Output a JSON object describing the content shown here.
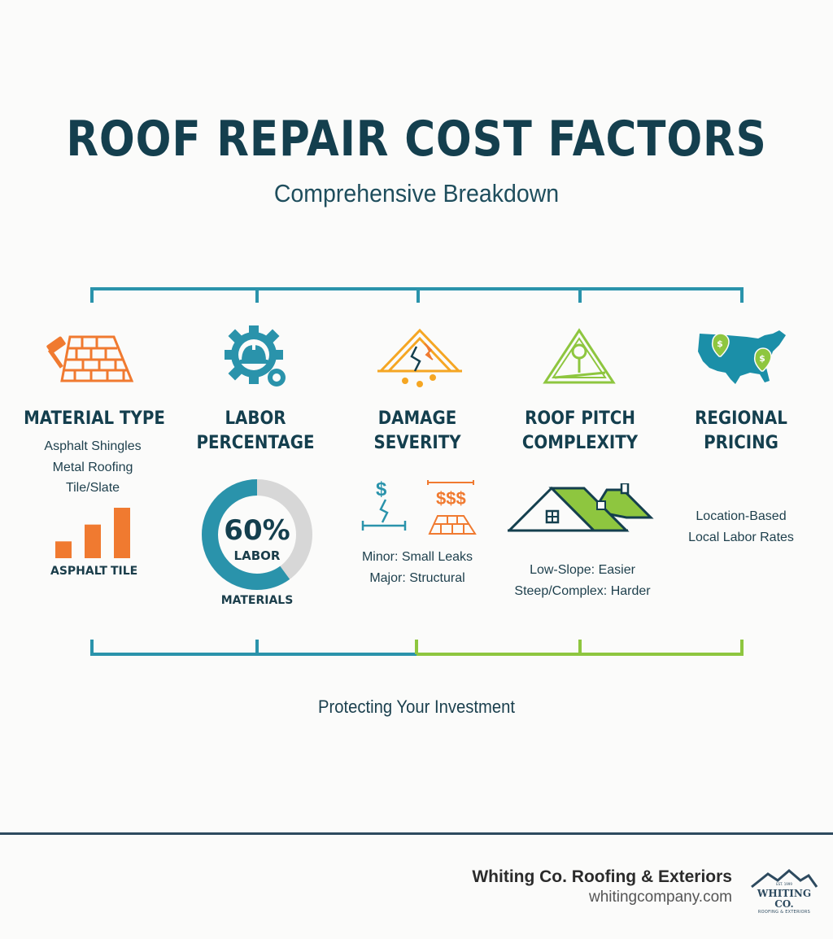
{
  "header": {
    "title": "ROOF REPAIR COST FACTORS",
    "subtitle": "Comprehensive Breakdown"
  },
  "factors": [
    {
      "title_1": "MATERIAL TYPE",
      "details": [
        "Asphalt Shingles",
        "Metal Roofing",
        "Tile/Slate"
      ],
      "chart_labels": [
        "ASPHALT",
        "TILE"
      ],
      "icon": "brick-roof-hammer-icon"
    },
    {
      "title_1": "LABOR",
      "title_2": "PERCENTAGE",
      "donut_value": "60%",
      "donut_label": "LABOR",
      "donut_sub": "MATERIALS",
      "icon": "gear-hardhat-icon"
    },
    {
      "title_1": "DAMAGE",
      "title_2": "SEVERITY",
      "details": [
        "Minor: Small Leaks",
        "Major: Structural"
      ],
      "cost_low": "$",
      "cost_high": "$$$",
      "icon": "cracked-roof-icon"
    },
    {
      "title_1": "ROOF PITCH",
      "title_2": "COMPLEXITY",
      "details": [
        "Low-Slope: Easier",
        "Steep/Complex: Harder"
      ],
      "icon": "pitch-triangle-icon"
    },
    {
      "title_1": "REGIONAL",
      "title_2": "PRICING",
      "details": [
        "Location-Based",
        "Local Labor Rates"
      ],
      "icon": "usa-map-pins-icon"
    }
  ],
  "tagline": "Protecting Your Investment",
  "footer": {
    "company": "Whiting Co. Roofing & Exteriors",
    "url": "whitingcompany.com",
    "logo_name": "WHITING CO.",
    "logo_sub": "ROOFING & EXTERIORS",
    "logo_est": "EST. 1999"
  },
  "colors": {
    "navy": "#143f4e",
    "teal": "#2a93ab",
    "orange": "#f07a30",
    "lime": "#8ec63f",
    "gray": "#d7d7d7"
  },
  "chart_data": {
    "type": "bar",
    "categories": [
      "ASPHALT",
      "",
      "TILE"
    ],
    "values": [
      1,
      2,
      3
    ],
    "donut": {
      "labor_percent": 60,
      "materials_percent": 40
    }
  }
}
